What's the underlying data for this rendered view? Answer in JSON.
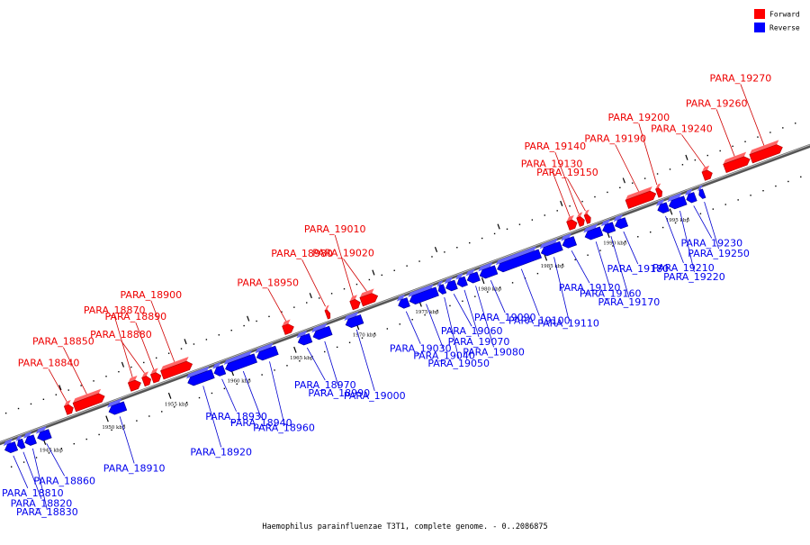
{
  "legend": {
    "forward": {
      "label": "Forward",
      "color": "#ff0000"
    },
    "reverse": {
      "label": "Reverse",
      "color": "#0000ff"
    }
  },
  "caption": "Haemophilus parainfluenzae T3T1, complete genome. - 0..2086875",
  "track": {
    "start_kbp": 1942,
    "end_kbp": 2004
  },
  "ticks": [
    {
      "label": "1945 kbp",
      "kbp": 1945
    },
    {
      "label": "1950 kbp",
      "kbp": 1950
    },
    {
      "label": "1955 kbp",
      "kbp": 1955
    },
    {
      "label": "1960 kbp",
      "kbp": 1960
    },
    {
      "label": "1965 kbp",
      "kbp": 1965
    },
    {
      "label": "1970 kbp",
      "kbp": 1970
    },
    {
      "label": "1975 kbp",
      "kbp": 1975
    },
    {
      "label": "1980 kbp",
      "kbp": 1980
    },
    {
      "label": "1985 kbp",
      "kbp": 1985
    },
    {
      "label": "1990 kbp",
      "kbp": 1990
    },
    {
      "label": "1995 kbp",
      "kbp": 1995
    }
  ],
  "forward_genes": [
    {
      "name": "PARA_18840",
      "start_kbp": 1947.3,
      "end_kbp": 1947.9
    },
    {
      "name": "PARA_18850",
      "start_kbp": 1948.0,
      "end_kbp": 1950.4
    },
    {
      "name": "PARA_18870",
      "start_kbp": 1952.4,
      "end_kbp": 1953.3
    },
    {
      "name": "PARA_18880",
      "start_kbp": 1953.5,
      "end_kbp": 1954.1
    },
    {
      "name": "PARA_18890",
      "start_kbp": 1954.2,
      "end_kbp": 1954.9
    },
    {
      "name": "PARA_18900",
      "start_kbp": 1955.0,
      "end_kbp": 1957.4
    },
    {
      "name": "PARA_18950",
      "start_kbp": 1964.7,
      "end_kbp": 1965.5
    },
    {
      "name": "PARA_18980",
      "start_kbp": 1968.1,
      "end_kbp": 1968.4
    },
    {
      "name": "PARA_19010",
      "start_kbp": 1970.1,
      "end_kbp": 1970.8
    },
    {
      "name": "PARA_19020",
      "start_kbp": 1970.9,
      "end_kbp": 1972.2
    },
    {
      "name": "PARA_19130",
      "start_kbp": 1987.4,
      "end_kbp": 1988.1
    },
    {
      "name": "PARA_19140",
      "start_kbp": 1988.2,
      "end_kbp": 1988.7
    },
    {
      "name": "PARA_19150",
      "start_kbp": 1988.8,
      "end_kbp": 1989.2
    },
    {
      "name": "PARA_19190",
      "start_kbp": 1992.1,
      "end_kbp": 1994.4
    },
    {
      "name": "PARA_19200",
      "start_kbp": 1994.5,
      "end_kbp": 1994.9
    },
    {
      "name": "PARA_19240",
      "start_kbp": 1998.2,
      "end_kbp": 1998.9
    },
    {
      "name": "PARA_19260",
      "start_kbp": 1999.9,
      "end_kbp": 2001.9
    },
    {
      "name": "PARA_19270",
      "start_kbp": 2002.0,
      "end_kbp": 2004.5
    }
  ],
  "reverse_genes": [
    {
      "name": "PARA_18810",
      "start_kbp": 1942.0,
      "end_kbp": 1942.9
    },
    {
      "name": "PARA_18820",
      "start_kbp": 1943.0,
      "end_kbp": 1943.5
    },
    {
      "name": "PARA_18830",
      "start_kbp": 1943.6,
      "end_kbp": 1944.4
    },
    {
      "name": "PARA_18860",
      "start_kbp": 1944.6,
      "end_kbp": 1945.6
    },
    {
      "name": "PARA_18910",
      "start_kbp": 1950.3,
      "end_kbp": 1951.6
    },
    {
      "name": "PARA_18920",
      "start_kbp": 1956.6,
      "end_kbp": 1958.6
    },
    {
      "name": "PARA_18930",
      "start_kbp": 1958.7,
      "end_kbp": 1959.5
    },
    {
      "name": "PARA_18940",
      "start_kbp": 1959.6,
      "end_kbp": 1962.0
    },
    {
      "name": "PARA_18960",
      "start_kbp": 1962.1,
      "end_kbp": 1963.7
    },
    {
      "name": "PARA_18970",
      "start_kbp": 1965.4,
      "end_kbp": 1966.4
    },
    {
      "name": "PARA_18990",
      "start_kbp": 1966.6,
      "end_kbp": 1968.0
    },
    {
      "name": "PARA_19000",
      "start_kbp": 1969.2,
      "end_kbp": 1970.5
    },
    {
      "name": "PARA_19030",
      "start_kbp": 1973.4,
      "end_kbp": 1974.2
    },
    {
      "name": "PARA_19040",
      "start_kbp": 1974.3,
      "end_kbp": 1976.5
    },
    {
      "name": "PARA_19050",
      "start_kbp": 1976.6,
      "end_kbp": 1977.1
    },
    {
      "name": "PARA_19060",
      "start_kbp": 1977.2,
      "end_kbp": 1978.0
    },
    {
      "name": "PARA_19070",
      "start_kbp": 1978.1,
      "end_kbp": 1978.8
    },
    {
      "name": "PARA_19080",
      "start_kbp": 1978.9,
      "end_kbp": 1979.8
    },
    {
      "name": "PARA_19090",
      "start_kbp": 1979.9,
      "end_kbp": 1981.2
    },
    {
      "name": "PARA_19100",
      "start_kbp": 1981.3,
      "end_kbp": 1984.7
    },
    {
      "name": "PARA_19110",
      "start_kbp": 1984.8,
      "end_kbp": 1986.4
    },
    {
      "name": "PARA_19120",
      "start_kbp": 1986.5,
      "end_kbp": 1987.5
    },
    {
      "name": "PARA_19160",
      "start_kbp": 1988.3,
      "end_kbp": 1989.6
    },
    {
      "name": "PARA_19170",
      "start_kbp": 1989.7,
      "end_kbp": 1990.6
    },
    {
      "name": "PARA_19180",
      "start_kbp": 1990.7,
      "end_kbp": 1991.6
    },
    {
      "name": "PARA_19210",
      "start_kbp": 1994.1,
      "end_kbp": 1994.9
    },
    {
      "name": "PARA_19220",
      "start_kbp": 1995.0,
      "end_kbp": 1996.3
    },
    {
      "name": "PARA_19230",
      "start_kbp": 1996.4,
      "end_kbp": 1997.1
    },
    {
      "name": "PARA_19250",
      "start_kbp": 1997.4,
      "end_kbp": 1997.8
    }
  ]
}
